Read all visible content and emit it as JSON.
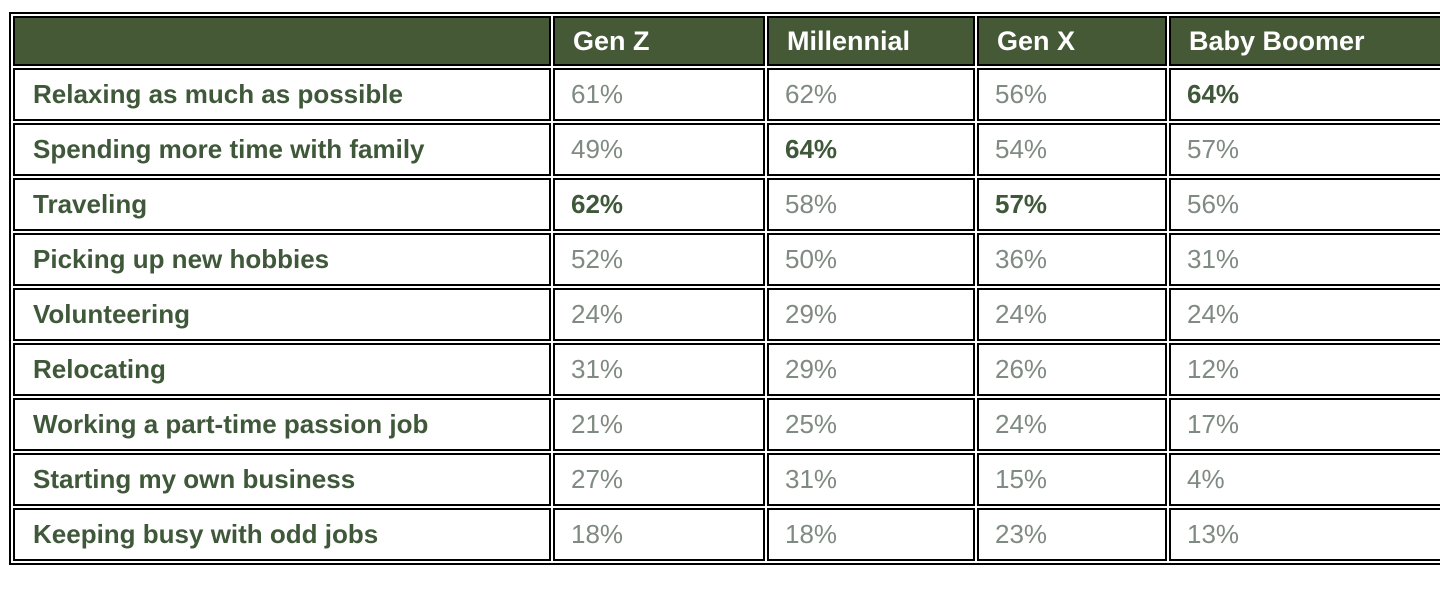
{
  "table": {
    "header_bg_color": "#455937",
    "header_text_color": "#ffffff",
    "label_text_color": "#3e5839",
    "value_text_color": "#7f8a82",
    "bold_value_text_color": "#3e5839",
    "border_color": "#000000",
    "columns": [
      "",
      "Gen Z",
      "Millennial",
      "Gen X",
      "Baby Boomer"
    ],
    "rows": [
      {
        "label": "Relaxing as much as possible",
        "values": [
          "61%",
          "62%",
          "56%",
          "64%"
        ],
        "bold": [
          3
        ]
      },
      {
        "label": "Spending more time with family",
        "values": [
          "49%",
          "64%",
          "54%",
          "57%"
        ],
        "bold": [
          1
        ]
      },
      {
        "label": "Traveling",
        "values": [
          "62%",
          "58%",
          "57%",
          "56%"
        ],
        "bold": [
          0,
          2
        ]
      },
      {
        "label": "Picking up new hobbies",
        "values": [
          "52%",
          "50%",
          "36%",
          "31%"
        ],
        "bold": []
      },
      {
        "label": "Volunteering",
        "values": [
          "24%",
          "29%",
          "24%",
          "24%"
        ],
        "bold": []
      },
      {
        "label": "Relocating",
        "values": [
          "31%",
          "29%",
          "26%",
          "12%"
        ],
        "bold": []
      },
      {
        "label": "Working a part-time passion job",
        "values": [
          "21%",
          "25%",
          "24%",
          "17%"
        ],
        "bold": []
      },
      {
        "label": "Starting my own business",
        "values": [
          "27%",
          "31%",
          "15%",
          "4%"
        ],
        "bold": []
      },
      {
        "label": "Keeping busy with odd jobs",
        "values": [
          "18%",
          "18%",
          "23%",
          "13%"
        ],
        "bold": []
      }
    ]
  },
  "chart_data": {
    "type": "table",
    "title": "",
    "columns": [
      "Gen Z",
      "Millennial",
      "Gen X",
      "Baby Boomer"
    ],
    "row_labels": [
      "Relaxing as much as possible",
      "Spending more time with family",
      "Traveling",
      "Picking up new hobbies",
      "Volunteering",
      "Relocating",
      "Working a part-time passion job",
      "Starting my own business",
      "Keeping busy with odd jobs"
    ],
    "series": [
      {
        "name": "Gen Z",
        "values": [
          61,
          49,
          62,
          52,
          24,
          31,
          21,
          27,
          18
        ]
      },
      {
        "name": "Millennial",
        "values": [
          62,
          64,
          58,
          50,
          29,
          29,
          25,
          31,
          18
        ]
      },
      {
        "name": "Gen X",
        "values": [
          56,
          54,
          57,
          36,
          24,
          26,
          24,
          15,
          23
        ]
      },
      {
        "name": "Baby Boomer",
        "values": [
          64,
          57,
          56,
          31,
          24,
          12,
          17,
          4,
          13
        ]
      }
    ],
    "unit": "%",
    "bold_cells_row_col": [
      [
        0,
        3
      ],
      [
        1,
        1
      ],
      [
        2,
        0
      ],
      [
        2,
        2
      ]
    ],
    "notes": "bold cells mark highest value highlights; values read as percentages"
  }
}
